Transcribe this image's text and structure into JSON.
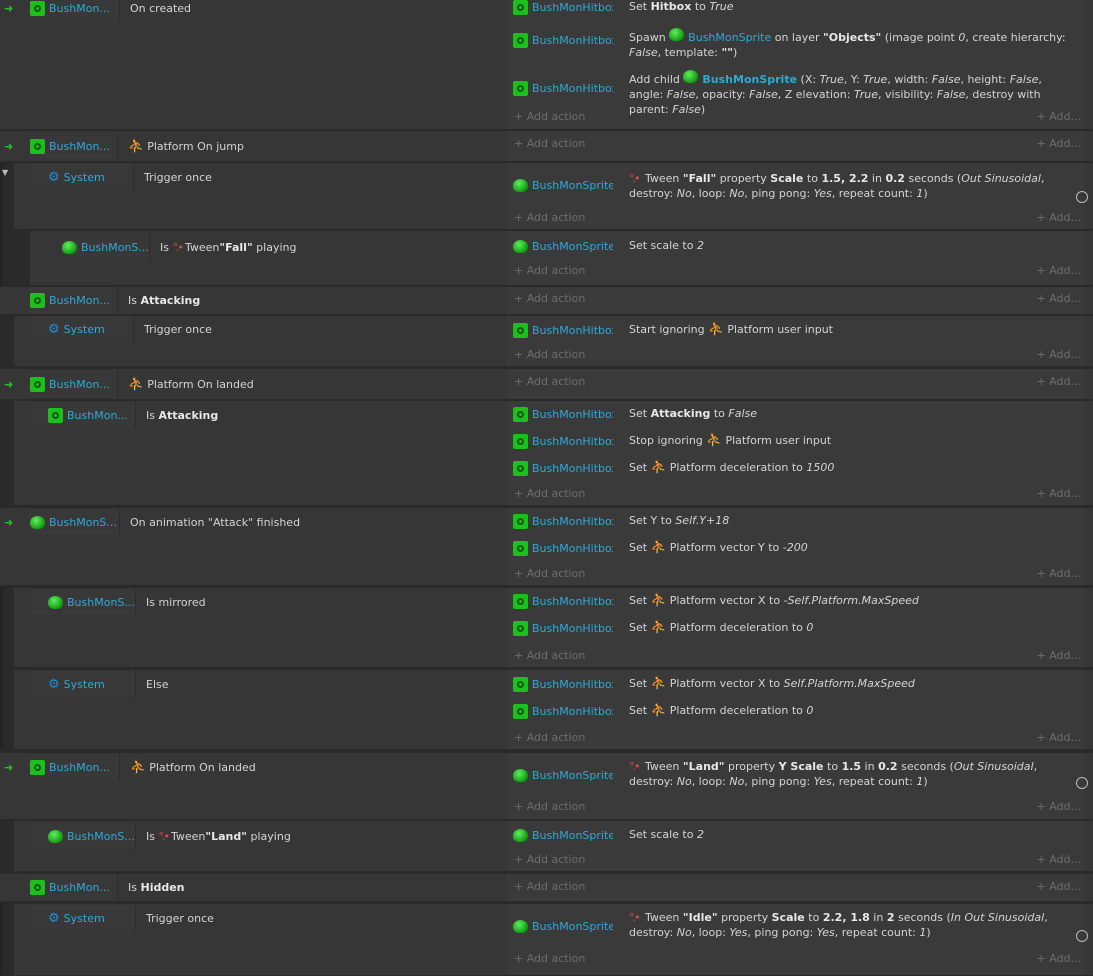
{
  "labels": {
    "add_action": "Add action",
    "add_more": "Add..."
  },
  "colors": {
    "bg": "#2a2a2a",
    "row": "#363636",
    "object_name": "#2fa9d6",
    "icon_green": "#1cbf1c",
    "system_blue": "#1e8ede",
    "platform_red": "#e04848"
  },
  "events": [
    {
      "object": "BushMon...",
      "object_icon": "hitbox-icon",
      "condition": "On created",
      "actions": [
        {
          "object": "BushMonHitbox",
          "text": "Set Hitbox to True"
        },
        {
          "object": "BushMonHitbox",
          "text": "Spawn BushMonSprite on layer \"Objects\" (image point 0, create hierarchy: False, template: \"\")"
        },
        {
          "object": "BushMonHitbox",
          "text": "Add child BushMonSprite (X: True, Y: True, width: False, height: False, angle: False, opacity: False, Z elevation: True, visibility: False, destroy with parent: False)"
        }
      ]
    },
    {
      "object": "BushMon...",
      "condition": "Platform On jump"
    },
    {
      "object": "System",
      "condition": "Trigger once",
      "actions": [
        {
          "object": "BushMonSprite",
          "text": "Tween \"Fall\" property Scale to 1.5, 2.2 in 0.2 seconds (Out Sinusoidal, destroy: No, loop: No, ping pong: Yes, repeat count: 1)"
        }
      ]
    },
    {
      "object": "BushMonS...",
      "condition": "Is Tween \"Fall\" playing",
      "actions": [
        {
          "object": "BushMonSprite",
          "text": "Set scale to 2"
        }
      ]
    },
    {
      "object": "BushMon...",
      "condition": "Is Attacking"
    },
    {
      "object": "System",
      "condition": "Trigger once",
      "actions": [
        {
          "object": "BushMonHitbox",
          "text": "Start ignoring Platform user input"
        }
      ]
    },
    {
      "object": "BushMon...",
      "condition": "Platform On landed"
    },
    {
      "object": "BushMon...",
      "condition": "Is Attacking",
      "actions": [
        {
          "object": "BushMonHitbox",
          "text": "Set Attacking to False"
        },
        {
          "object": "BushMonHitbox",
          "text": "Stop ignoring Platform user input"
        },
        {
          "object": "BushMonHitbox",
          "text": "Set Platform deceleration to 1500"
        }
      ]
    },
    {
      "object": "BushMonS...",
      "condition": "On animation \"Attack\" finished",
      "actions": [
        {
          "object": "BushMonHitbox",
          "text": "Set Y to Self.Y+18"
        },
        {
          "object": "BushMonHitbox",
          "text": "Set Platform vector Y to -200"
        }
      ]
    },
    {
      "object": "BushMonS...",
      "condition": "Is mirrored",
      "actions": [
        {
          "object": "BushMonHitbox",
          "text": "Set Platform vector X to -Self.Platform.MaxSpeed"
        },
        {
          "object": "BushMonHitbox",
          "text": "Set Platform deceleration to 0"
        }
      ]
    },
    {
      "object": "System",
      "condition": "Else",
      "actions": [
        {
          "object": "BushMonHitbox",
          "text": "Set Platform vector X to Self.Platform.MaxSpeed"
        },
        {
          "object": "BushMonHitbox",
          "text": "Set Platform deceleration to 0"
        }
      ]
    },
    {
      "object": "BushMon...",
      "condition": "Platform On landed",
      "actions": [
        {
          "object": "BushMonSprite",
          "text": "Tween \"Land\" property Y Scale to 1.5 in 0.2 seconds (Out Sinusoidal, destroy: No, loop: No, ping pong: Yes, repeat count: 1)"
        }
      ]
    },
    {
      "object": "BushMonS...",
      "condition": "Is Tween \"Land\" playing",
      "actions": [
        {
          "object": "BushMonSprite",
          "text": "Set scale to 2"
        }
      ]
    },
    {
      "object": "BushMon...",
      "condition": "Is Hidden"
    },
    {
      "object": "System",
      "condition": "Trigger once",
      "actions": [
        {
          "object": "BushMonSprite",
          "text": "Tween \"Idle\" property Scale to 2.2, 1.8 in 2 seconds (In Out Sinusoidal, destroy: No, loop: Yes, ping pong: Yes, repeat count: 1)"
        }
      ]
    }
  ]
}
